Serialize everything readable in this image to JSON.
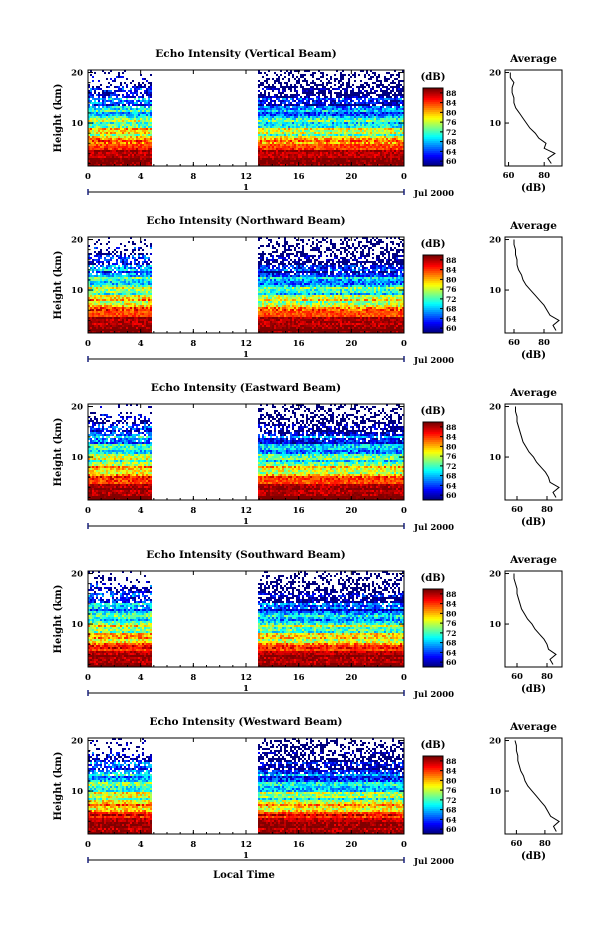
{
  "figure": {
    "xlabel": "Local Time",
    "date_label": "Jul 2000",
    "day_label": "1"
  },
  "chart_data": [
    {
      "type": "heatmap",
      "title": "Echo Intensity (Vertical Beam)",
      "ylabel": "Height (km)",
      "xlabel": "Local Time",
      "x_ticks": [
        "0",
        "4",
        "8",
        "12",
        "16",
        "20",
        "0"
      ],
      "xlim": [
        0,
        24
      ],
      "y_ticks": [
        "10",
        "20"
      ],
      "ylim": [
        1.5,
        20.5
      ],
      "data_gap": [
        4.8,
        12.9
      ],
      "colorbar": {
        "label": "(dB)",
        "ticks": [
          "60",
          "64",
          "68",
          "72",
          "76",
          "80",
          "84",
          "88"
        ],
        "range": [
          60,
          90
        ]
      },
      "average_profile": {
        "title": "Average",
        "xlabel": "(dB)",
        "x_ticks": [
          "60",
          "80"
        ],
        "xlim": [
          58,
          90
        ],
        "y_ticks": [
          "10",
          "20"
        ],
        "height": [
          2,
          3,
          4,
          5,
          6,
          7,
          8,
          9,
          10,
          11,
          12,
          13,
          14,
          15,
          16,
          17,
          18,
          19,
          20
        ],
        "db": [
          84,
          82,
          86,
          80,
          81,
          77,
          75,
          72,
          70,
          68,
          66,
          64,
          63,
          63,
          62,
          62,
          63,
          61,
          61
        ]
      }
    },
    {
      "type": "heatmap",
      "title": "Echo Intensity (Northward Beam)",
      "ylabel": "Height (km)",
      "xlabel": "Local Time",
      "x_ticks": [
        "0",
        "4",
        "8",
        "12",
        "16",
        "20",
        "0"
      ],
      "xlim": [
        0,
        24
      ],
      "y_ticks": [
        "10",
        "20"
      ],
      "ylim": [
        1.5,
        20.5
      ],
      "data_gap": [
        4.8,
        12.9
      ],
      "colorbar": {
        "label": "(dB)",
        "ticks": [
          "60",
          "64",
          "68",
          "72",
          "76",
          "80",
          "84",
          "88"
        ],
        "range": [
          60,
          90
        ]
      },
      "average_profile": {
        "title": "Average",
        "xlabel": "(dB)",
        "x_ticks": [
          "60",
          "80"
        ],
        "xlim": [
          54,
          92
        ],
        "y_ticks": [
          "10",
          "20"
        ],
        "height": [
          2,
          3,
          4,
          5,
          6,
          7,
          8,
          9,
          10,
          11,
          12,
          13,
          14,
          15,
          16,
          17,
          18,
          19,
          20
        ],
        "db": [
          88,
          86,
          90,
          84,
          82,
          80,
          77,
          74,
          71,
          68,
          66,
          65,
          63,
          62,
          62,
          61,
          61,
          60,
          60
        ]
      }
    },
    {
      "type": "heatmap",
      "title": "Echo Intensity (Eastward Beam)",
      "ylabel": "Height (km)",
      "xlabel": "Local Time",
      "x_ticks": [
        "0",
        "4",
        "8",
        "12",
        "16",
        "20",
        "0"
      ],
      "xlim": [
        0,
        24
      ],
      "y_ticks": [
        "10",
        "20"
      ],
      "ylim": [
        1.5,
        20.5
      ],
      "data_gap": [
        4.8,
        12.9
      ],
      "colorbar": {
        "label": "(dB)",
        "ticks": [
          "60",
          "64",
          "68",
          "72",
          "76",
          "80",
          "84",
          "88"
        ],
        "range": [
          60,
          90
        ]
      },
      "average_profile": {
        "title": "Average",
        "xlabel": "(dB)",
        "x_ticks": [
          "60",
          "80"
        ],
        "xlim": [
          52,
          90
        ],
        "y_ticks": [
          "10",
          "20"
        ],
        "height": [
          2,
          3,
          4,
          5,
          6,
          7,
          8,
          9,
          10,
          11,
          12,
          13,
          14,
          15,
          16,
          17,
          18,
          19,
          20
        ],
        "db": [
          86,
          84,
          88,
          82,
          81,
          79,
          76,
          73,
          71,
          68,
          66,
          64,
          63,
          62,
          61,
          60,
          60,
          59,
          59
        ]
      }
    },
    {
      "type": "heatmap",
      "title": "Echo Intensity (Southward Beam)",
      "ylabel": "Height (km)",
      "xlabel": "Local Time",
      "x_ticks": [
        "0",
        "4",
        "8",
        "12",
        "16",
        "20",
        "0"
      ],
      "xlim": [
        0,
        24
      ],
      "y_ticks": [
        "10",
        "20"
      ],
      "ylim": [
        1.5,
        20.5
      ],
      "data_gap": [
        4.8,
        12.9
      ],
      "colorbar": {
        "label": "(dB)",
        "ticks": [
          "60",
          "64",
          "68",
          "72",
          "76",
          "80",
          "84",
          "88"
        ],
        "range": [
          60,
          90
        ]
      },
      "average_profile": {
        "title": "Average",
        "xlabel": "(dB)",
        "x_ticks": [
          "60",
          "80"
        ],
        "xlim": [
          52,
          90
        ],
        "y_ticks": [
          "10",
          "20"
        ],
        "height": [
          2,
          3,
          4,
          5,
          6,
          7,
          8,
          9,
          10,
          11,
          12,
          13,
          14,
          15,
          16,
          17,
          18,
          19,
          20
        ],
        "db": [
          84,
          82,
          86,
          81,
          80,
          78,
          75,
          72,
          70,
          67,
          65,
          63,
          62,
          61,
          60,
          60,
          59,
          58,
          58
        ]
      }
    },
    {
      "type": "heatmap",
      "title": "Echo Intensity (Westward Beam)",
      "ylabel": "Height (km)",
      "xlabel": "Local Time",
      "x_ticks": [
        "0",
        "4",
        "8",
        "12",
        "16",
        "20",
        "0"
      ],
      "xlim": [
        0,
        24
      ],
      "y_ticks": [
        "10",
        "20"
      ],
      "ylim": [
        1.5,
        20.5
      ],
      "data_gap": [
        4.8,
        12.9
      ],
      "colorbar": {
        "label": "(dB)",
        "ticks": [
          "60",
          "64",
          "68",
          "72",
          "76",
          "80",
          "84",
          "88"
        ],
        "range": [
          60,
          90
        ]
      },
      "average_profile": {
        "title": "Average",
        "xlabel": "(dB)",
        "x_ticks": [
          "60",
          "80"
        ],
        "xlim": [
          52,
          92
        ],
        "y_ticks": [
          "10",
          "20"
        ],
        "height": [
          2,
          3,
          4,
          5,
          6,
          7,
          8,
          9,
          10,
          11,
          12,
          13,
          14,
          15,
          16,
          17,
          18,
          19,
          20
        ],
        "db": [
          88,
          86,
          90,
          84,
          82,
          80,
          77,
          74,
          71,
          68,
          66,
          65,
          63,
          62,
          61,
          61,
          60,
          60,
          59
        ]
      }
    }
  ]
}
